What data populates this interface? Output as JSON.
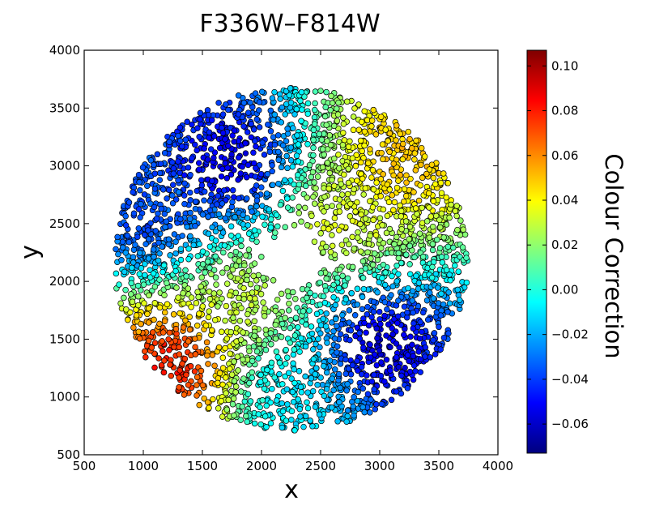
{
  "chart_data": {
    "type": "scatter",
    "title": "F336W–F814W",
    "xlabel": "x",
    "ylabel": "y",
    "xlim": [
      500,
      4000
    ],
    "ylim": [
      500,
      4000
    ],
    "xticks": [
      500,
      1000,
      1500,
      2000,
      2500,
      3000,
      3500,
      4000
    ],
    "yticks": [
      500,
      1000,
      1500,
      2000,
      2500,
      3000,
      3500,
      4000
    ],
    "grid": false,
    "colorbar": {
      "label": "Colour Correction",
      "range": [
        -0.073,
        0.107
      ],
      "ticks": [
        0.1,
        0.08,
        0.06,
        0.04,
        0.02,
        0.0,
        -0.02,
        -0.04,
        -0.06
      ],
      "tick_labels": [
        "0.10",
        "0.08",
        "0.06",
        "0.04",
        "0.02",
        "0.00",
        "−0.02",
        "−0.04",
        "−0.06"
      ],
      "colormap": "jet",
      "colors": [
        "#00007f",
        "#0000ff",
        "#007fff",
        "#00ffff",
        "#7fff7f",
        "#ffff00",
        "#ff7f00",
        "#ff0000",
        "#7f0000"
      ]
    },
    "marker_edge_color": "#000000",
    "field": {
      "center": [
        2250,
        2190
      ],
      "outer_radius": 1500,
      "inner_hole_radius": 200,
      "approx_points": 3200
    },
    "regions": [
      {
        "name": "upper-left blue lobe",
        "x": 1750,
        "y": 3000,
        "c": -0.058
      },
      {
        "name": "lower-right blue lobe",
        "x": 3000,
        "y": 1450,
        "c": -0.06
      },
      {
        "name": "left blue band",
        "x": 1050,
        "y": 2550,
        "c": -0.04
      },
      {
        "name": "lower-left red patch",
        "x": 1250,
        "y": 1300,
        "c": 0.085
      },
      {
        "name": "top-right yellow patch",
        "x": 3150,
        "y": 3050,
        "c": 0.052
      },
      {
        "name": "centre-left yellow-green",
        "x": 1850,
        "y": 1850,
        "c": 0.03
      },
      {
        "name": "centre-right yellow-green",
        "x": 2650,
        "y": 2500,
        "c": 0.035
      },
      {
        "name": "lower-centre cyan",
        "x": 2250,
        "y": 1050,
        "c": -0.012
      }
    ]
  }
}
